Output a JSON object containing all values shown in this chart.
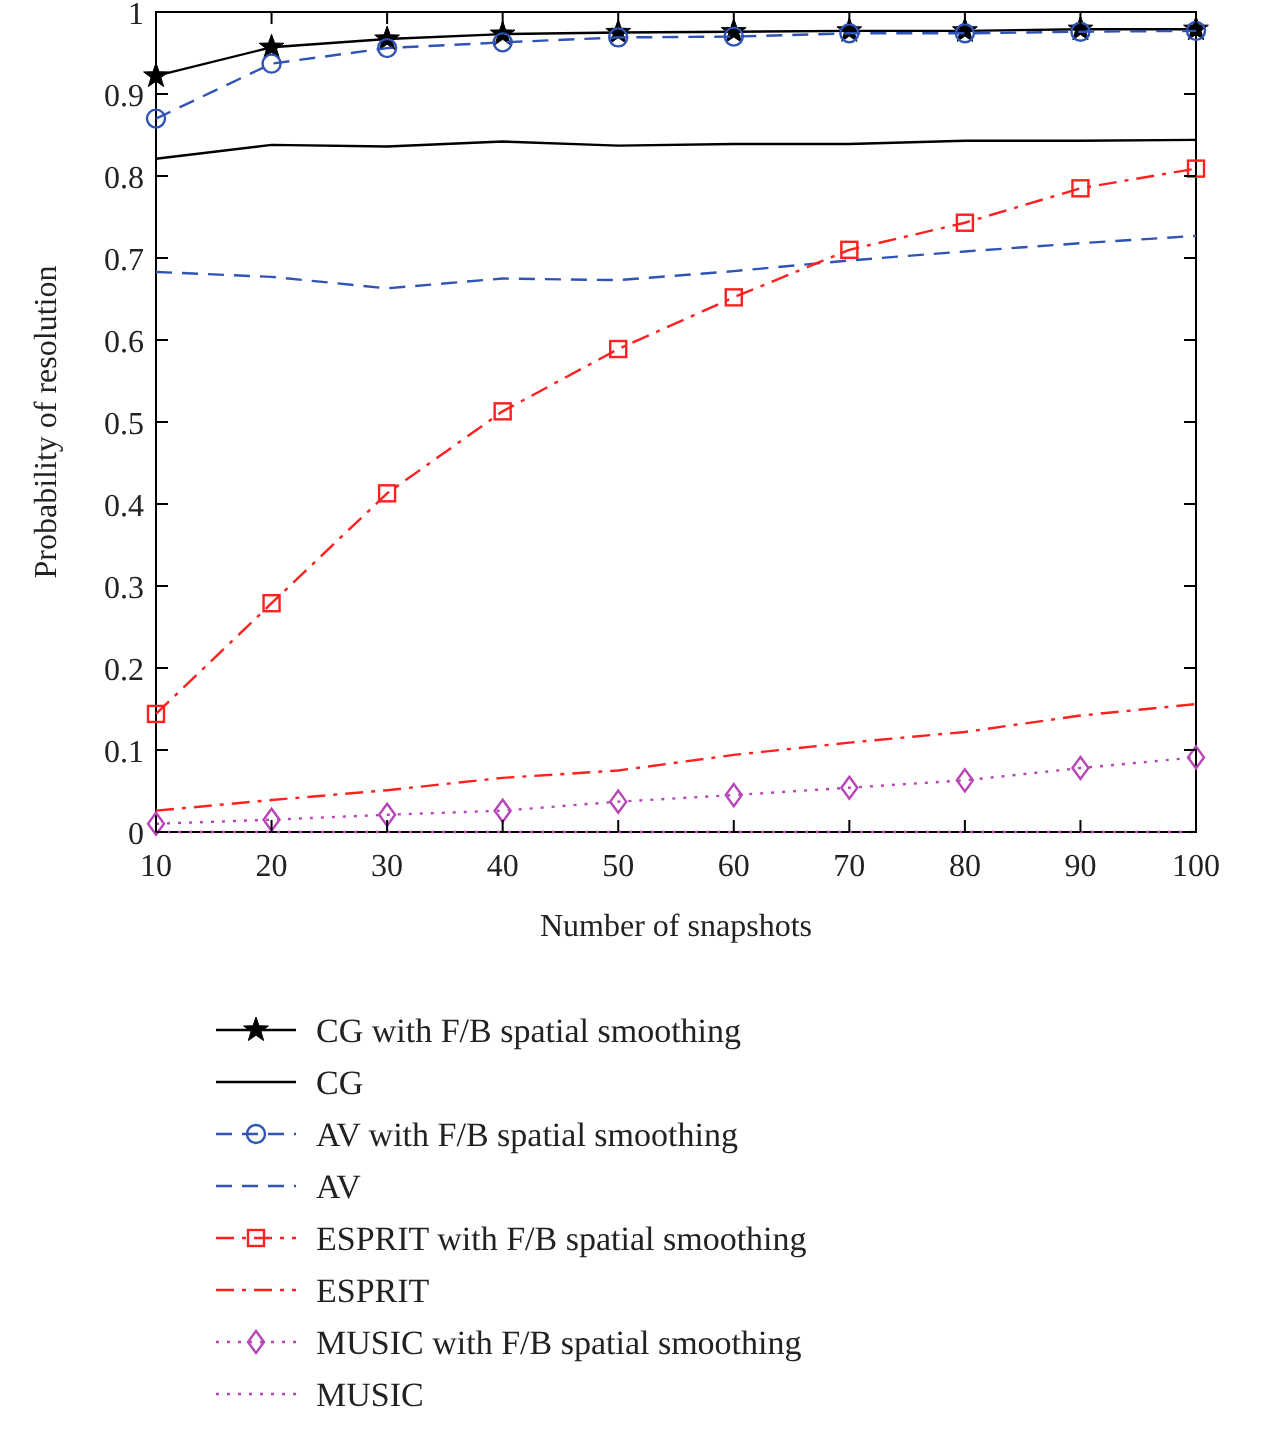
{
  "chart_data": {
    "type": "line",
    "xlabel": "Number of snapshots",
    "ylabel": "Probability of resolution",
    "x": [
      10,
      20,
      30,
      40,
      50,
      60,
      70,
      80,
      90,
      100
    ],
    "xlim": [
      10,
      100
    ],
    "xticks": [
      10,
      20,
      30,
      40,
      50,
      60,
      70,
      80,
      90,
      100
    ],
    "ylim": [
      0,
      1
    ],
    "yticks": [
      0,
      0.1,
      0.2,
      0.3,
      0.4,
      0.5,
      0.6,
      0.7,
      0.8,
      0.9,
      1
    ],
    "grid": false,
    "legend": "bottom",
    "series": [
      {
        "name": "CG with F/B spatial smoothing",
        "color": "#000000",
        "marker": "star",
        "line_style": "solid",
        "values": [
          0.922,
          0.957,
          0.967,
          0.973,
          0.975,
          0.976,
          0.977,
          0.977,
          0.979,
          0.979
        ]
      },
      {
        "name": "CG",
        "color": "#000000",
        "marker": "none",
        "line_style": "solid",
        "values": [
          0.821,
          0.838,
          0.836,
          0.842,
          0.837,
          0.839,
          0.839,
          0.843,
          0.843,
          0.844
        ]
      },
      {
        "name": "AV with F/B spatial smoothing",
        "color": "#2f54b5",
        "marker": "circle",
        "line_style": "dashed",
        "values": [
          0.87,
          0.937,
          0.956,
          0.963,
          0.969,
          0.97,
          0.974,
          0.974,
          0.976,
          0.977
        ]
      },
      {
        "name": "AV",
        "color": "#2f54b5",
        "marker": "none",
        "line_style": "dashed",
        "values": [
          0.683,
          0.677,
          0.663,
          0.675,
          0.673,
          0.684,
          0.697,
          0.708,
          0.718,
          0.727
        ]
      },
      {
        "name": "ESPRIT with F/B spatial smoothing",
        "color": "#ff2020",
        "marker": "square",
        "line_style": "dashdot",
        "values": [
          0.144,
          0.279,
          0.413,
          0.513,
          0.589,
          0.652,
          0.71,
          0.743,
          0.785,
          0.809
        ]
      },
      {
        "name": "ESPRIT",
        "color": "#ff2020",
        "marker": "none",
        "line_style": "dashdot",
        "values": [
          0.026,
          0.039,
          0.051,
          0.066,
          0.075,
          0.094,
          0.109,
          0.122,
          0.142,
          0.156
        ]
      },
      {
        "name": "MUSIC with F/B spatial smoothing",
        "color": "#b845b8",
        "marker": "diamond",
        "line_style": "dotted",
        "values": [
          0.01,
          0.015,
          0.021,
          0.026,
          0.037,
          0.045,
          0.054,
          0.063,
          0.078,
          0.091
        ]
      },
      {
        "name": "MUSIC",
        "color": "#b845b8",
        "marker": "none",
        "line_style": "dotted",
        "values": [
          0,
          0,
          0,
          0,
          0,
          0,
          0,
          0,
          0,
          0
        ]
      }
    ]
  }
}
